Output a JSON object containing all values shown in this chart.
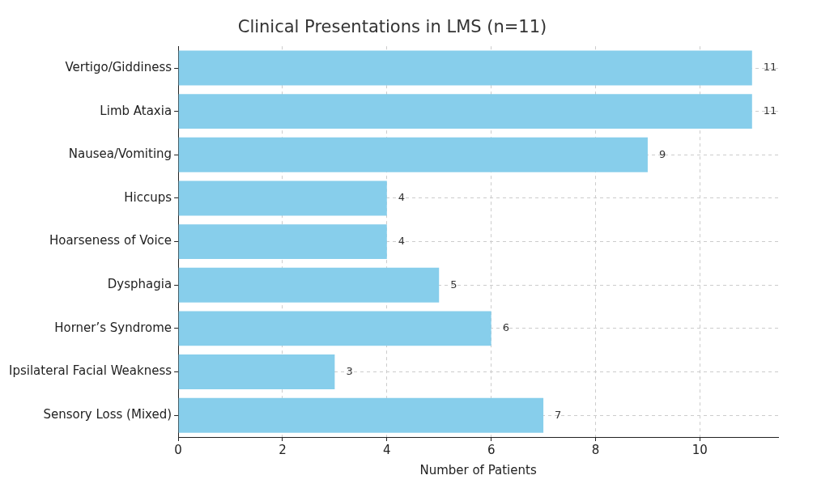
{
  "chart_data": {
    "type": "bar",
    "orientation": "horizontal",
    "title": "Clinical Presentations in LMS (n=11)",
    "xlabel": "Number of Patients",
    "categories": [
      "Vertigo/Giddiness",
      "Limb Ataxia",
      "Nausea/Vomiting",
      "Hiccups",
      "Hoarseness of Voice",
      "Dysphagia",
      "Horner’s Syndrome",
      "Ipsilateral Facial Weakness",
      "Sensory Loss (Mixed)"
    ],
    "values": [
      11,
      11,
      9,
      4,
      4,
      5,
      6,
      3,
      7
    ],
    "color": "#87ceeb",
    "xlim": [
      0,
      11.5
    ],
    "xticks": [
      0,
      2,
      4,
      6,
      8,
      10
    ],
    "grid": true,
    "data_labels": true
  }
}
